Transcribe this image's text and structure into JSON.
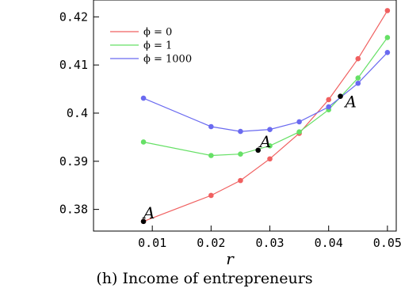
{
  "chart_data": {
    "type": "line",
    "caption": "(h) Income of entrepreneurs",
    "xlabel": "r",
    "ylabel": "",
    "xlim": [
      0,
      0.0515
    ],
    "ylim": [
      0.3755,
      0.4235
    ],
    "xticks": [
      0.01,
      0.02,
      0.03,
      0.04,
      0.05
    ],
    "xtick_labels": [
      "0.01",
      "0.02",
      "0.03",
      "0.04",
      "0.05"
    ],
    "yticks": [
      0.38,
      0.39,
      0.4,
      0.41,
      0.42
    ],
    "ytick_labels": [
      "0.38",
      "0.39",
      "0.4",
      "0.41",
      "0.42"
    ],
    "grid": false,
    "legend_position": "top-left",
    "series": [
      {
        "name": "ϕ = 0",
        "color": "#f06060",
        "x": [
          0.0085,
          0.02,
          0.025,
          0.03,
          0.035,
          0.04,
          0.045,
          0.05
        ],
        "y": [
          0.3775,
          0.3829,
          0.386,
          0.3905,
          0.3958,
          0.4028,
          0.4113,
          0.4213
        ]
      },
      {
        "name": "ϕ = 1",
        "color": "#66e066",
        "x": [
          0.0085,
          0.02,
          0.025,
          0.03,
          0.035,
          0.04,
          0.045,
          0.05
        ],
        "y": [
          0.394,
          0.3912,
          0.3915,
          0.3932,
          0.3961,
          0.4007,
          0.4073,
          0.4157
        ]
      },
      {
        "name": "ϕ = 1000",
        "color": "#6a6af0",
        "x": [
          0.0085,
          0.02,
          0.025,
          0.03,
          0.035,
          0.04,
          0.045,
          0.05
        ],
        "y": [
          0.4031,
          0.3972,
          0.3962,
          0.3966,
          0.3982,
          0.4013,
          0.4062,
          0.4126
        ]
      }
    ],
    "annotations": [
      {
        "text": "A",
        "x": 0.0085,
        "y": 0.3775
      },
      {
        "text": "A",
        "x": 0.028,
        "y": 0.3923
      },
      {
        "text": "A",
        "x": 0.042,
        "y": 0.4035
      }
    ]
  }
}
